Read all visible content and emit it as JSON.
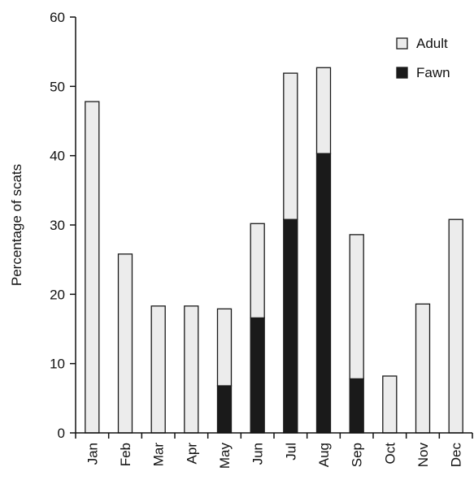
{
  "chart_data": {
    "type": "bar",
    "stacked": true,
    "title": "",
    "xlabel": "",
    "ylabel": "Percentage of scats",
    "ylim": [
      0,
      60
    ],
    "yticks": [
      0,
      10,
      20,
      30,
      40,
      50,
      60
    ],
    "grid": false,
    "legend_position": "top-right",
    "categories": [
      "Jan",
      "Feb",
      "Mar",
      "Apr",
      "May",
      "Jun",
      "Jul",
      "Aug",
      "Sep",
      "Oct",
      "Nov",
      "Dec"
    ],
    "series": [
      {
        "name": "Fawn",
        "color": "#1a1a1a",
        "values": [
          0,
          0,
          0,
          0,
          6.8,
          16.6,
          30.8,
          40.3,
          7.8,
          0,
          0,
          0
        ]
      },
      {
        "name": "Adult",
        "color": "#ececec",
        "values": [
          47.8,
          25.8,
          18.3,
          18.3,
          11.1,
          13.6,
          21.1,
          12.4,
          20.8,
          8.2,
          18.6,
          30.8
        ]
      }
    ],
    "legend": [
      {
        "name": "Adult",
        "color": "#ececec"
      },
      {
        "name": "Fawn",
        "color": "#1a1a1a"
      }
    ]
  }
}
